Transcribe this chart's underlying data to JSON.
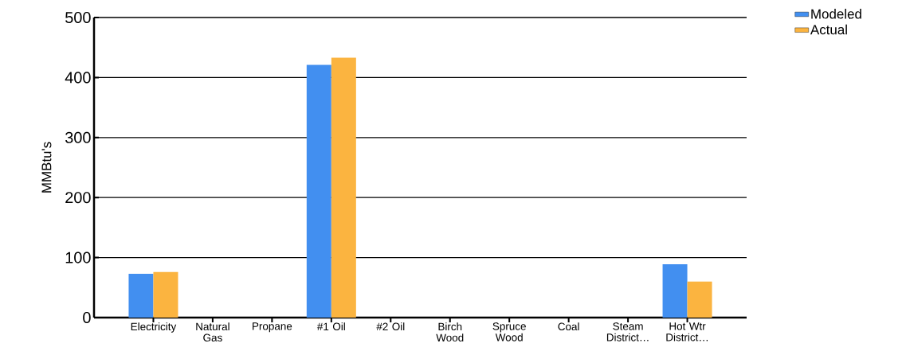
{
  "chart_data": {
    "type": "bar",
    "ylabel": "MMBtu's",
    "categories": [
      "Electricity",
      "Natural Gas",
      "Propane",
      "#1 Oil",
      "#2 Oil",
      "Birch Wood",
      "Spruce Wood",
      "Coal",
      "Steam District…",
      "Hot Wtr District…"
    ],
    "series": [
      {
        "name": "Modeled",
        "color": "#428ff0",
        "values": [
          73,
          0,
          0,
          421,
          0,
          0,
          0,
          0,
          0,
          89
        ]
      },
      {
        "name": "Actual",
        "color": "#fbb440",
        "values": [
          76,
          0,
          0,
          433,
          0,
          0,
          0,
          0,
          0,
          60
        ]
      }
    ],
    "ylim": [
      0,
      500
    ],
    "yticks": [
      0,
      100,
      200,
      300,
      400,
      500
    ],
    "grid": "y",
    "legend": "top right"
  }
}
